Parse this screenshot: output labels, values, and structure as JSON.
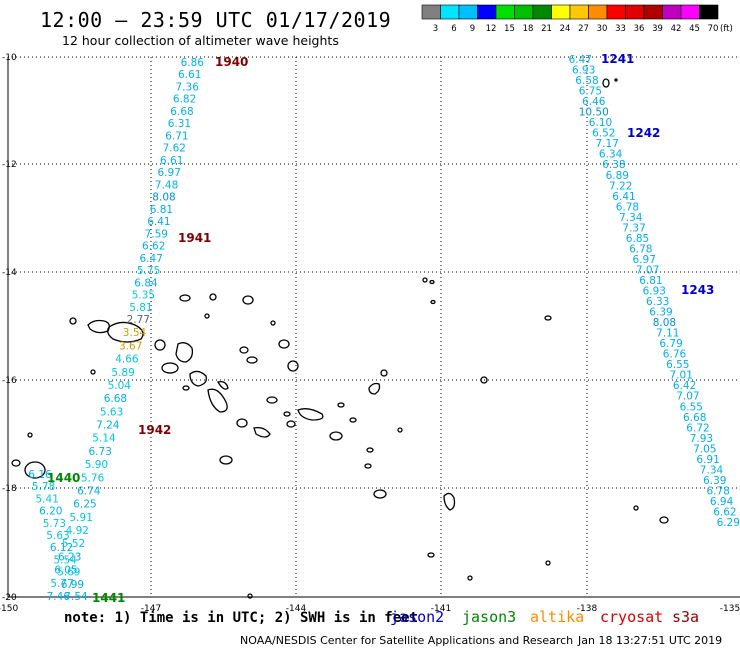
{
  "title": "12:00 – 23:59 UTC 01/17/2019",
  "subtitle": "12 hour collection of altimeter wave heights",
  "note": "note: 1) Time is in UTC; 2) SWH is in feet",
  "credit_left": "NOAA/NESDIS Center for Satellite Applications and Research",
  "credit_right": "Jan 18 13:27:51 UTC 2019",
  "colorbar": {
    "unit": "(ft)",
    "labels": [
      "3",
      "6",
      "9",
      "12",
      "15",
      "18",
      "21",
      "24",
      "27",
      "30",
      "33",
      "36",
      "39",
      "42",
      "45",
      "70"
    ],
    "colors": [
      "#808080",
      "#00e5ff",
      "#00bfff",
      "#0000ff",
      "#00e000",
      "#00c000",
      "#008800",
      "#ffff00",
      "#ffc800",
      "#ff8c00",
      "#ff0000",
      "#e00000",
      "#b00000",
      "#c000c0",
      "#ff00ff",
      "#000000"
    ]
  },
  "satellites": [
    {
      "name": "jason2",
      "color": "#0000cc"
    },
    {
      "name": "jason3",
      "color": "#008800"
    },
    {
      "name": "altika",
      "color": "#ff8c00"
    },
    {
      "name": "cryosat",
      "color": "#dd0000"
    },
    {
      "name": "s3a",
      "color": "#990000"
    }
  ],
  "axes": {
    "lon_ticks": [
      "-150",
      "-147",
      "-144",
      "-141",
      "-138",
      "-135"
    ],
    "lat_ticks": [
      "-10",
      "-12",
      "-14",
      "-16",
      "-18",
      "-20"
    ]
  },
  "tracks": [
    {
      "id": "track-s3a-west",
      "time_labels": [
        {
          "text": "1940",
          "color": "#800000"
        },
        {
          "text": "1941",
          "color": "#800000"
        },
        {
          "text": "1942",
          "color": "#800000"
        }
      ],
      "values": [
        "6.86",
        "6.61",
        "7.36",
        "6.82",
        "6.68",
        "6.31",
        "6.71",
        "7.62",
        "6.61",
        "6.97",
        "7.48",
        "8.08",
        "6.81",
        "6.41",
        "7.59",
        "6.62",
        "6.47",
        "5.75",
        "6.84",
        "5.35",
        "5.81",
        "2.77",
        "3.54",
        "3.67",
        "4.66",
        "5.89",
        "5.04",
        "6.68",
        "5.63",
        "7.24",
        "5.14",
        "6.73",
        "5.90",
        "5.76",
        "6.74",
        "6.25",
        "5.91",
        "4.92",
        "5.52",
        "6.23",
        "6.05",
        "5.77",
        "7.46"
      ]
    },
    {
      "id": "track-jason3-west",
      "time_labels": [
        {
          "text": "1440",
          "color": "#008800"
        },
        {
          "text": "1441",
          "color": "#008800"
        }
      ],
      "values": [
        "6.16",
        "5.78",
        "5.41",
        "6.20",
        "5.73",
        "5.63",
        "6.12",
        "5.54",
        "5.69",
        "6.99",
        "7.54"
      ]
    },
    {
      "id": "track-jason2-east",
      "time_labels": [
        {
          "text": "1241",
          "color": "#0000cc"
        },
        {
          "text": "1242",
          "color": "#0000cc"
        },
        {
          "text": "1243",
          "color": "#0000cc"
        }
      ],
      "values": [
        "6.47",
        "6.93",
        "6.58",
        "6.75",
        "6.46",
        "10.50",
        "6.10",
        "6.52",
        "7.17",
        "6.34",
        "6.38",
        "6.89",
        "7.22",
        "6.41",
        "6.78",
        "7.34",
        "7.37",
        "6.85",
        "6.78",
        "6.97",
        "7.07",
        "6.81",
        "6.93",
        "6.33",
        "6.39",
        "8.08",
        "7.11",
        "6.79",
        "6.76",
        "6.55",
        "7.01",
        "6.42",
        "7.07",
        "6.55",
        "6.68",
        "6.72",
        "7.93",
        "7.05",
        "6.91",
        "7.34",
        "6.39",
        "6.78",
        "6.94",
        "6.62",
        "6.29"
      ]
    }
  ]
}
